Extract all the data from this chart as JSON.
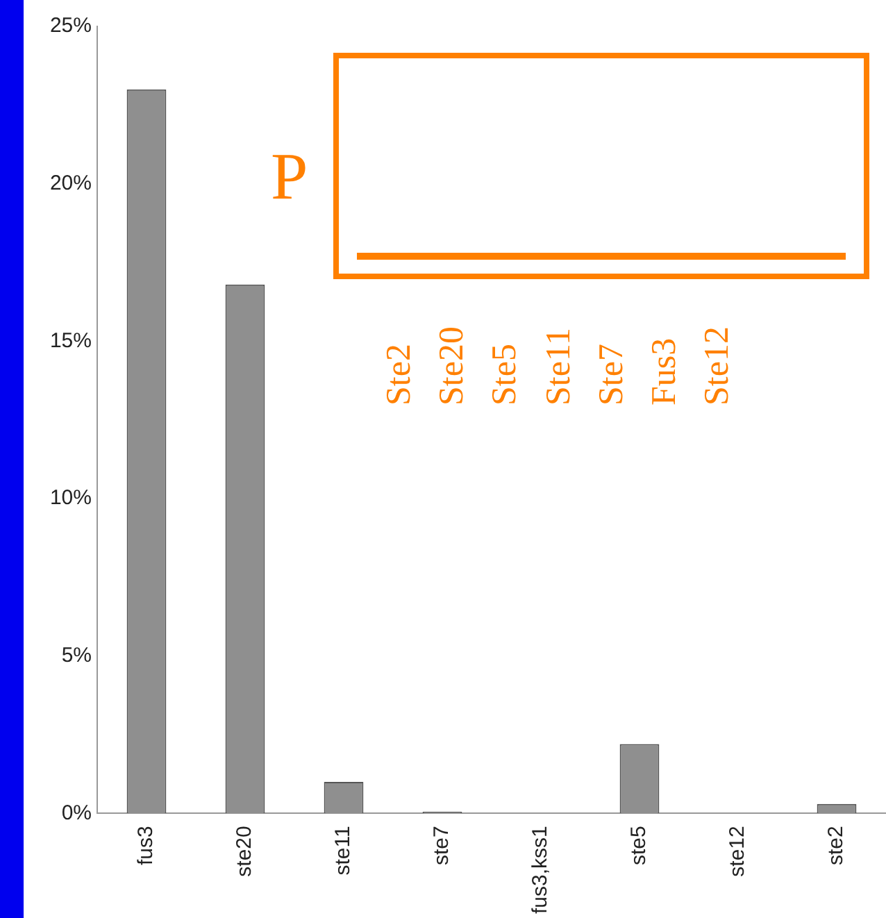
{
  "chart_data": {
    "type": "bar",
    "categories": [
      "fus3",
      "ste20",
      "ste11",
      "ste7",
      "fus3,kss1",
      "ste5",
      "ste12",
      "ste2"
    ],
    "values": [
      23,
      16.8,
      1,
      0.05,
      0,
      2.2,
      0,
      0.3
    ],
    "color": "#8f8f8f",
    "ylim": [
      0,
      25
    ],
    "yticks": [
      {
        "value": 0,
        "label": "0%"
      },
      {
        "value": 5,
        "label": "5%"
      },
      {
        "value": 10,
        "label": "10%"
      },
      {
        "value": 15,
        "label": "15%"
      },
      {
        "value": 20,
        "label": "20%"
      },
      {
        "value": 25,
        "label": "25%"
      }
    ],
    "grid": false,
    "legend": false,
    "annotations": [
      "P",
      "Ste2",
      "Ste20",
      "Ste5",
      "Ste11",
      "Ste7",
      "Fus3",
      "Ste12"
    ]
  }
}
